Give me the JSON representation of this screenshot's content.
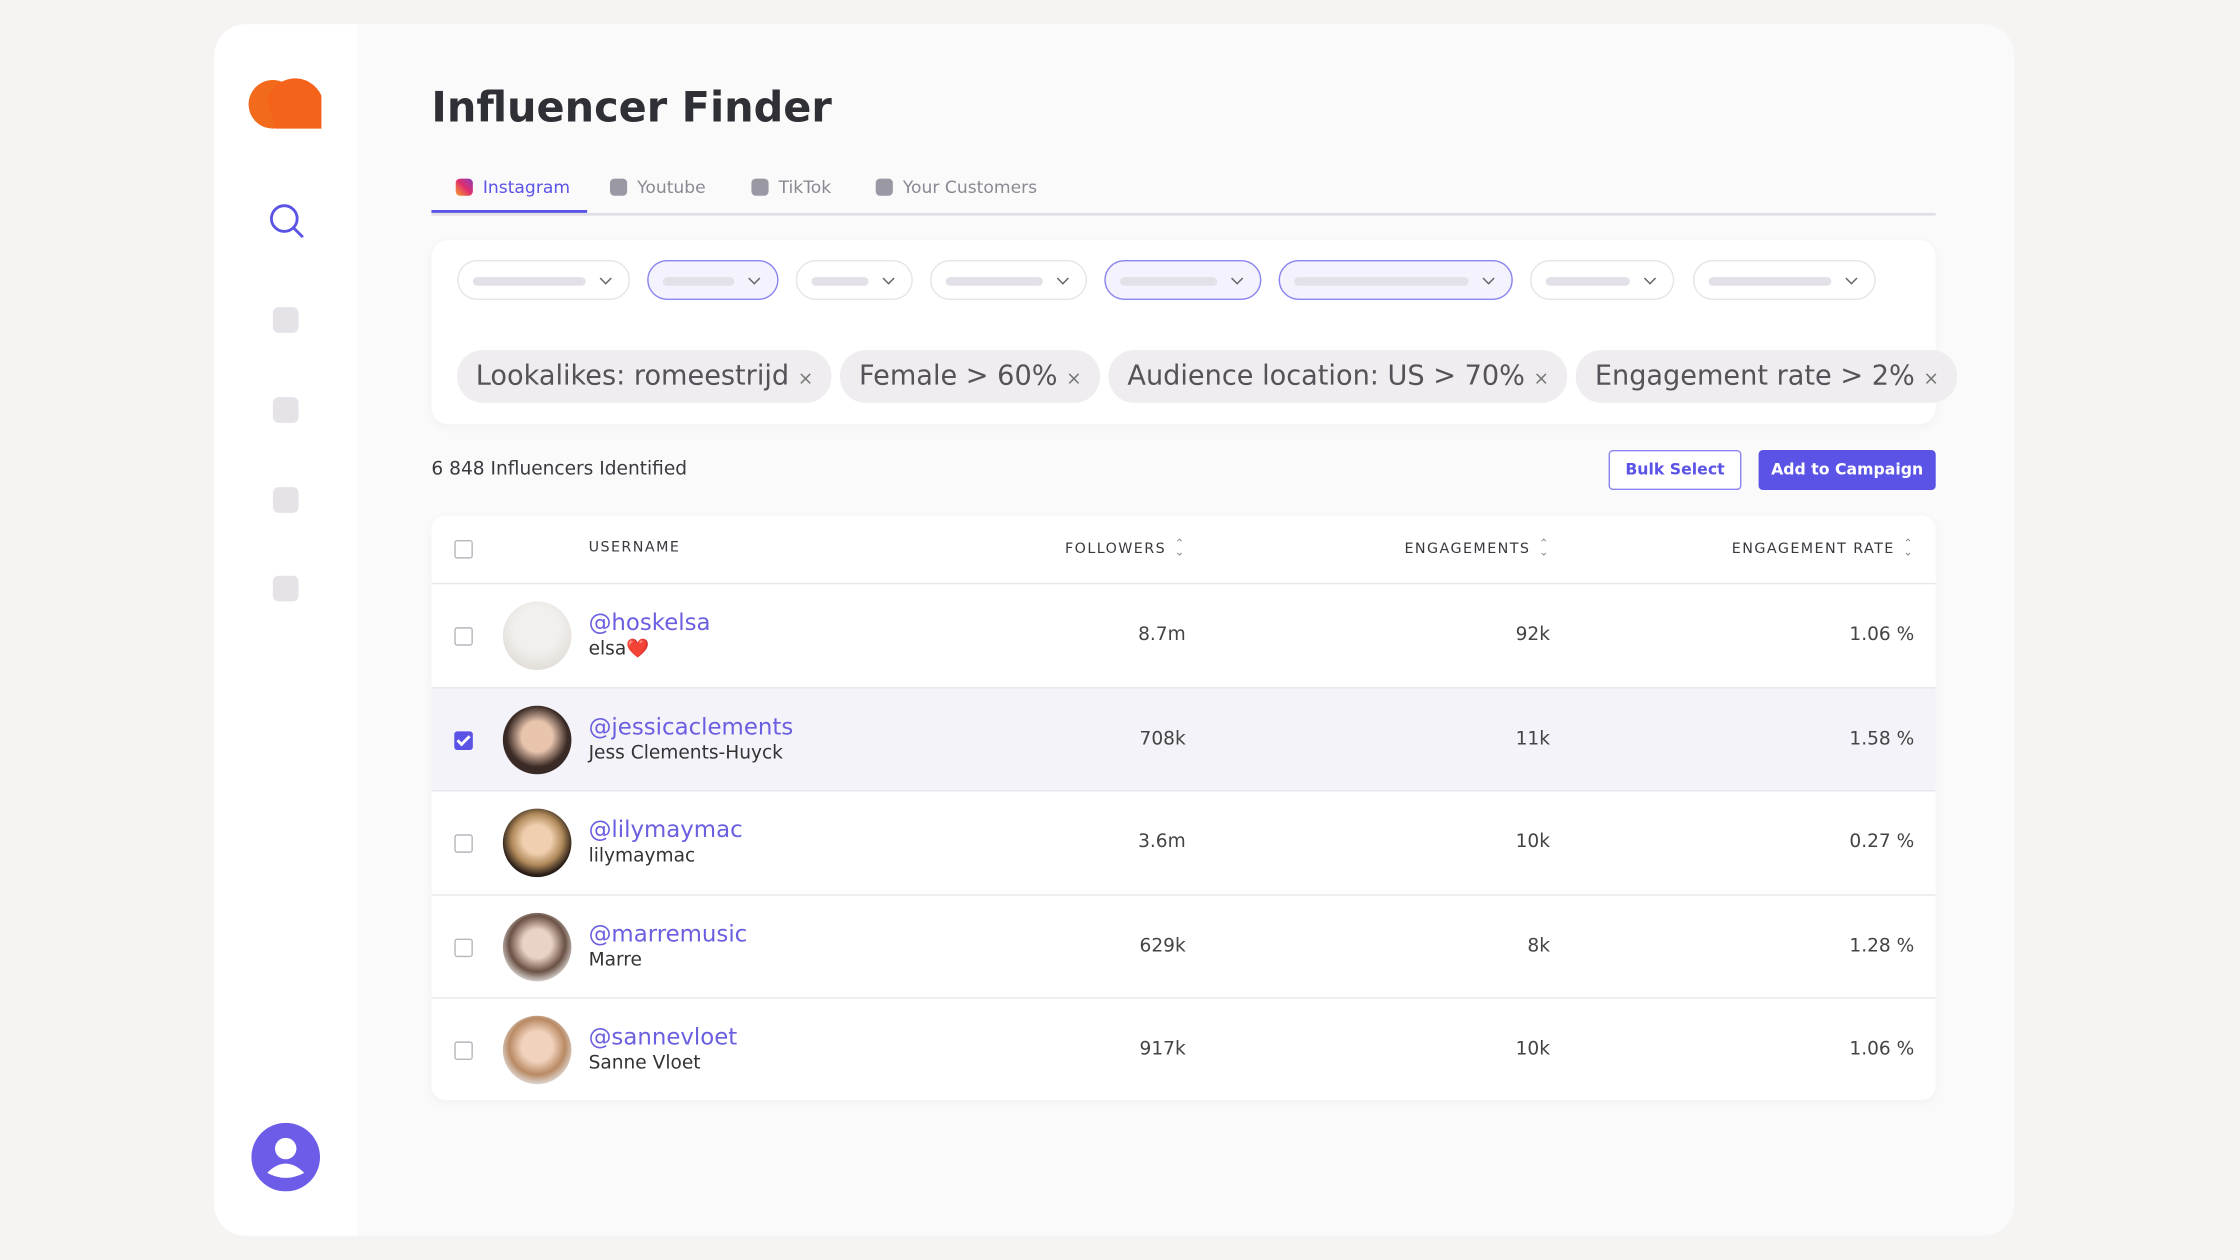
{
  "header": {
    "title": "Influencer Finder"
  },
  "tabs": [
    {
      "label": "Instagram",
      "active": true
    },
    {
      "label": "Youtube",
      "active": false
    },
    {
      "label": "TikTok",
      "active": false
    },
    {
      "label": "Your Customers",
      "active": false
    }
  ],
  "filter_chips": [
    "Lookalikes: romeestrijd",
    "Female > 60%",
    "Audience location: US > 70%",
    "Engagement rate > 2%"
  ],
  "chip_close": "×",
  "results_count": "6 848 Influencers Identified",
  "buttons": {
    "bulk_select": "Bulk Select",
    "add_to_campaign": "Add to Campaign"
  },
  "table": {
    "columns": [
      "USERNAME",
      "FOLLOWERS",
      "ENGAGEMENTS",
      "ENGAGEMENT RATE"
    ],
    "rows": [
      {
        "username": "@hoskelsa",
        "name": "elsa❤️",
        "followers": "8.7m",
        "engagements": "92k",
        "engagement_rate": "1.06 %",
        "selected": false
      },
      {
        "username": "@jessicaclements",
        "name": "Jess Clements-Huyck",
        "followers": "708k",
        "engagements": "11k",
        "engagement_rate": "1.58 %",
        "selected": true
      },
      {
        "username": "@lilymaymac",
        "name": "lilymaymac",
        "followers": "3.6m",
        "engagements": "10k",
        "engagement_rate": "0.27 %",
        "selected": false
      },
      {
        "username": "@marremusic",
        "name": "Marre",
        "followers": "629k",
        "engagements": "8k",
        "engagement_rate": "1.28 %",
        "selected": false
      },
      {
        "username": "@sannevloet",
        "name": "Sanne Vloet",
        "followers": "917k",
        "engagements": "10k",
        "engagement_rate": "1.06 %",
        "selected": false
      }
    ]
  }
}
